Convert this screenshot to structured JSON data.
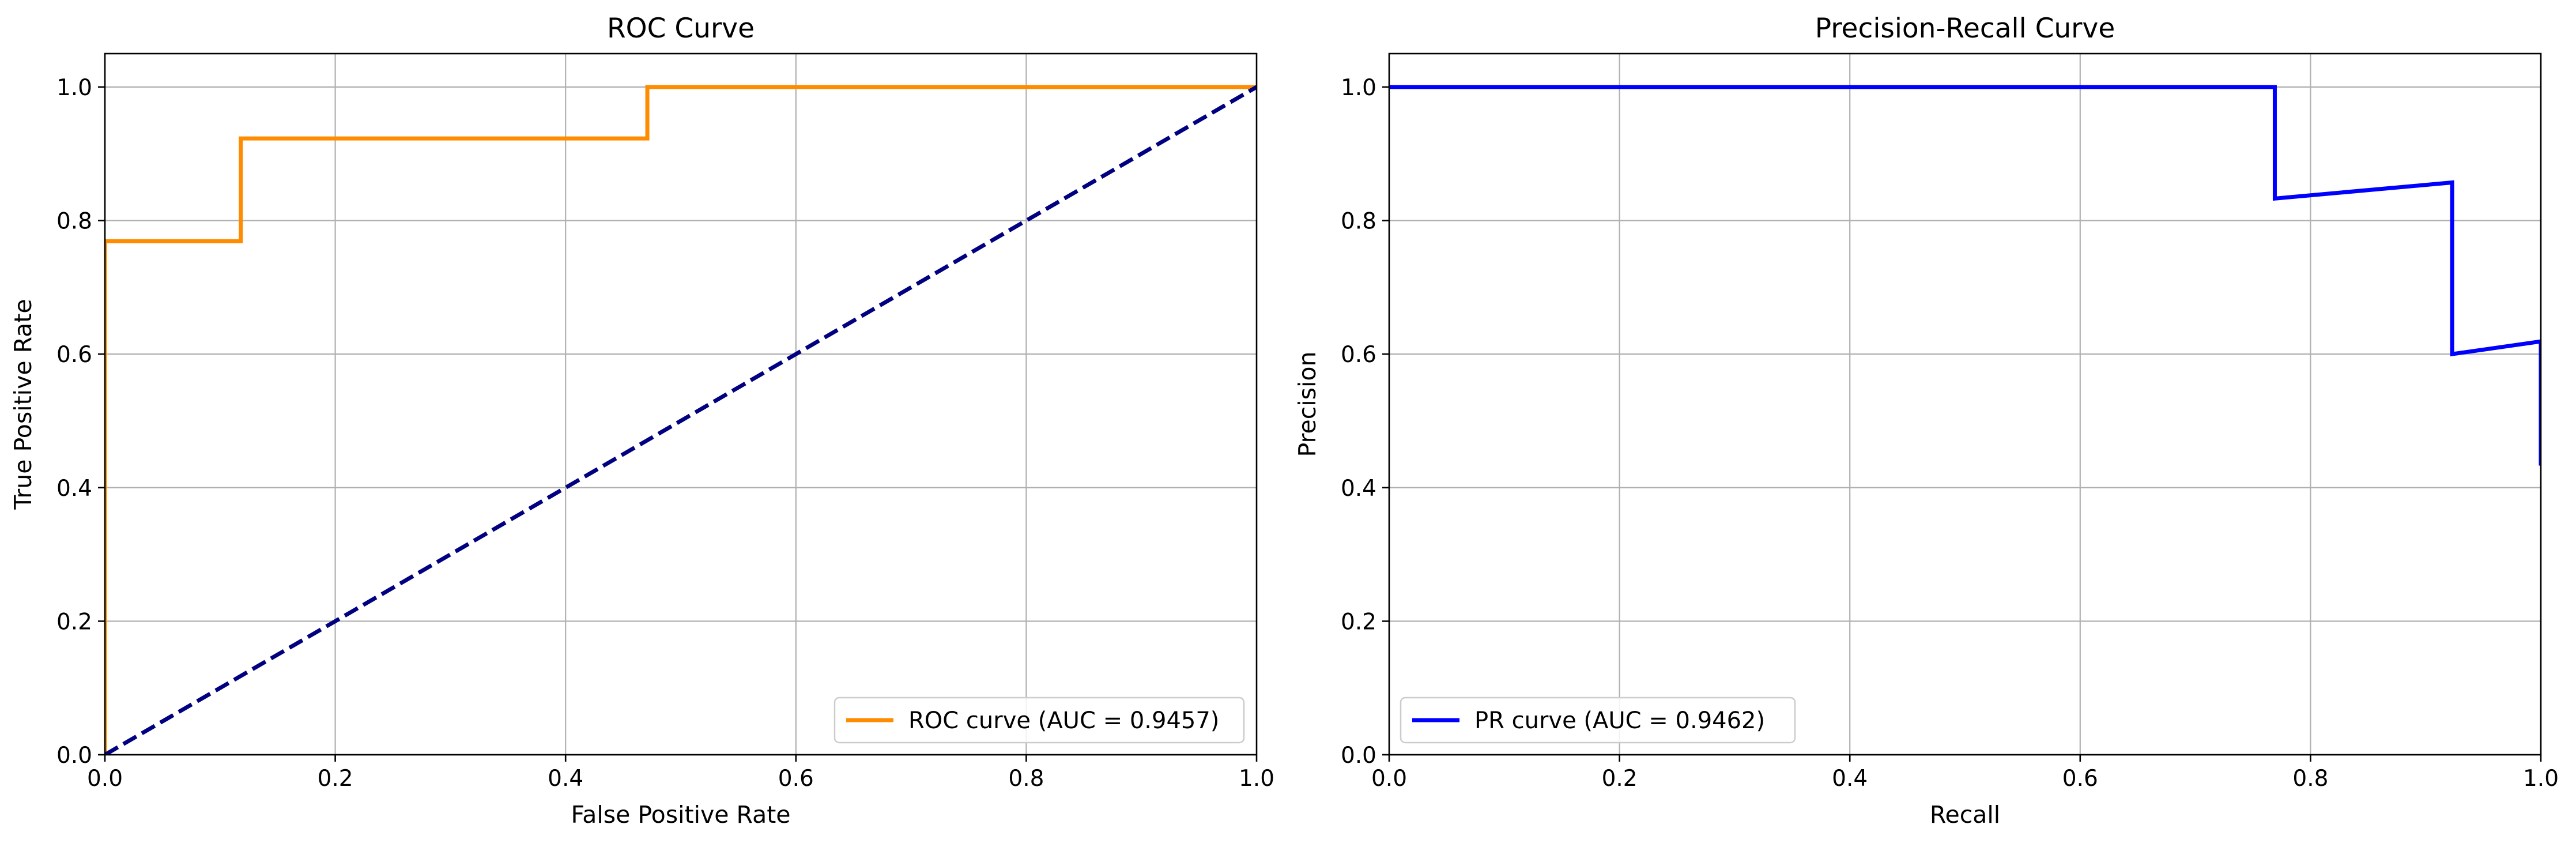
{
  "chart_data": [
    {
      "type": "line",
      "title": "ROC Curve",
      "xlabel": "False Positive Rate",
      "ylabel": "True Positive Rate",
      "xlim": [
        0.0,
        1.0
      ],
      "ylim": [
        0.0,
        1.05
      ],
      "xticks": [
        "0.0",
        "0.2",
        "0.4",
        "0.6",
        "0.8",
        "1.0"
      ],
      "yticks": [
        "0.0",
        "0.2",
        "0.4",
        "0.6",
        "0.8",
        "1.0"
      ],
      "grid": true,
      "legend_position": "lower right",
      "series": [
        {
          "name": "ROC curve (AUC = 0.9457)",
          "color": "#ff8c00",
          "style": "solid",
          "x": [
            0.0,
            0.0,
            0.0,
            0.118,
            0.118,
            0.471,
            0.471,
            1.0
          ],
          "y": [
            0.0,
            0.769,
            0.769,
            0.769,
            0.923,
            0.923,
            1.0,
            1.0
          ]
        },
        {
          "name": "",
          "color": "#000080",
          "style": "dashed",
          "x": [
            0.0,
            1.0
          ],
          "y": [
            0.0,
            1.0
          ]
        }
      ]
    },
    {
      "type": "line",
      "title": "Precision-Recall Curve",
      "xlabel": "Recall",
      "ylabel": "Precision",
      "xlim": [
        0.0,
        1.0
      ],
      "ylim": [
        0.0,
        1.05
      ],
      "xticks": [
        "0.0",
        "0.2",
        "0.4",
        "0.6",
        "0.8",
        "1.0"
      ],
      "yticks": [
        "0.0",
        "0.2",
        "0.4",
        "0.6",
        "0.8",
        "1.0"
      ],
      "grid": true,
      "legend_position": "lower left",
      "series": [
        {
          "name": "PR curve (AUC = 0.9462)",
          "color": "#0000ff",
          "style": "solid",
          "x": [
            0.0,
            0.769,
            0.769,
            0.923,
            0.923,
            1.0,
            1.0
          ],
          "y": [
            1.0,
            1.0,
            0.833,
            0.857,
            0.6,
            0.619,
            0.433
          ]
        }
      ]
    }
  ]
}
